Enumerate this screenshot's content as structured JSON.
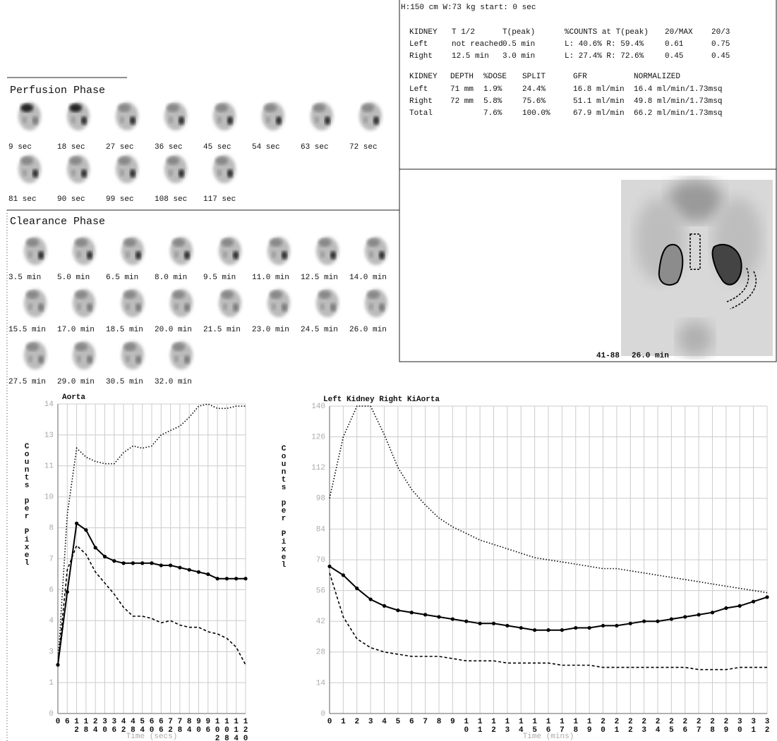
{
  "header": {
    "patient": "H:150 cm  W:73 kg   start:  0 sec"
  },
  "kidney_table": {
    "columns": [
      "KIDNEY",
      "T 1/2",
      "T(peak)",
      "%COUNTS at T(peak)",
      "20/MAX",
      "20/3"
    ],
    "rows": [
      [
        "Left",
        "not reached",
        "0.5 min",
        "L:  40.6%  R:  59.4%",
        "0.61",
        "0.75"
      ],
      [
        "Right",
        "12.5 min",
        "3.0 min",
        "L:  27.4%  R:  72.6%",
        "0.45",
        "0.45"
      ]
    ]
  },
  "gfr_table": {
    "columns": [
      "KIDNEY",
      "DEPTH",
      "%DOSE",
      "SPLIT",
      "GFR",
      "NORMALIZED"
    ],
    "rows": [
      [
        "Left",
        "71 mm",
        "1.9%",
        "24.4%",
        "16.8 ml/min",
        "16.4 ml/min/1.73msq"
      ],
      [
        "Right",
        "72 mm",
        "5.8%",
        "75.6%",
        "51.1 ml/min",
        "49.8 ml/min/1.73msq"
      ],
      [
        "Total",
        "7.6%",
        "100.0%",
        "67.9 ml/min",
        "66.2 ml/min/1.73msq"
      ]
    ]
  },
  "image": {
    "frames": "41-88",
    "time": "26.0 min"
  },
  "perfusion": {
    "title": "Perfusion Phase",
    "frames": [
      "9 sec",
      "18 sec",
      "27 sec",
      "36 sec",
      "45 sec",
      "54 sec",
      "63 sec",
      "72 sec",
      "81 sec",
      "90 sec",
      "99 sec",
      "108 sec",
      "117 sec"
    ]
  },
  "clearance": {
    "title": "Clearance Phase",
    "frames": [
      "3.5 min",
      "5.0 min",
      "6.5 min",
      "8.0 min",
      "9.5 min",
      "11.0 min",
      "12.5 min",
      "14.0 min",
      "15.5 min",
      "17.0 min",
      "18.5 min",
      "20.0 min",
      "21.5 min",
      "23.0 min",
      "24.5 min",
      "26.0 min",
      "27.5 min",
      "29.0 min",
      "30.5 min",
      "32.0 min"
    ]
  },
  "chart_data": [
    {
      "type": "line",
      "title": "Aorta",
      "y_label": "Counts per Pixel",
      "x_label": "Time (secs)",
      "x": [
        0,
        6,
        12,
        18,
        24,
        30,
        36,
        42,
        48,
        54,
        60,
        66,
        72,
        78,
        84,
        90,
        96,
        102,
        108,
        114,
        120
      ],
      "xlim": [
        0,
        120
      ],
      "xticks": [
        0,
        6,
        12,
        18,
        24,
        30,
        36,
        42,
        48,
        54,
        60,
        66,
        72,
        78,
        84,
        90,
        96,
        102,
        108,
        114,
        120
      ],
      "ylim": [
        0,
        14
      ],
      "yticks": [
        0,
        {
          "value": 1.4,
          "label": "1"
        },
        {
          "value": 2.8,
          "label": "3"
        },
        {
          "value": 4.2,
          "label": "4"
        },
        {
          "value": 5.6,
          "label": "6"
        },
        7,
        {
          "value": 8.4,
          "label": "8"
        },
        {
          "value": 9.8,
          "label": "10"
        },
        {
          "value": 11.2,
          "label": "11"
        },
        {
          "value": 12.6,
          "label": "13"
        },
        14
      ],
      "grid": true,
      "series": [
        {
          "color": "#000000",
          "style": "dotted",
          "values": [
            2.2,
            9.0,
            12.0,
            11.6,
            11.4,
            11.3,
            11.3,
            11.8,
            12.1,
            12.0,
            12.1,
            12.6,
            12.8,
            13.0,
            13.4,
            13.9,
            14.0,
            13.8,
            13.8,
            13.9,
            13.9
          ]
        },
        {
          "color": "#000000",
          "style": "solid-markers",
          "values": [
            2.2,
            5.5,
            8.6,
            8.3,
            7.5,
            7.1,
            6.9,
            6.8,
            6.8,
            6.8,
            6.8,
            6.7,
            6.7,
            6.6,
            6.5,
            6.4,
            6.3,
            6.1,
            6.1,
            6.1,
            6.1
          ]
        },
        {
          "color": "#000000",
          "style": "dashed",
          "values": [
            2.2,
            6.5,
            7.6,
            7.2,
            6.4,
            5.9,
            5.4,
            4.8,
            4.4,
            4.4,
            4.3,
            4.1,
            4.2,
            4.0,
            3.9,
            3.9,
            3.7,
            3.6,
            3.4,
            3.0,
            2.2
          ]
        }
      ]
    },
    {
      "type": "line",
      "title": "Left Kidney Right KiAorta",
      "y_label": "Counts per Pixel",
      "x_label": "Time (mins)",
      "x": [
        0,
        1,
        2,
        3,
        4,
        5,
        6,
        7,
        8,
        9,
        10,
        11,
        12,
        13,
        14,
        15,
        16,
        17,
        18,
        19,
        20,
        21,
        22,
        23,
        24,
        25,
        26,
        27,
        28,
        29,
        30,
        31,
        32
      ],
      "xlim": [
        0,
        32
      ],
      "xticks": [
        0,
        1,
        2,
        3,
        4,
        5,
        6,
        7,
        8,
        9,
        10,
        11,
        12,
        13,
        14,
        15,
        16,
        17,
        18,
        19,
        20,
        21,
        22,
        23,
        24,
        25,
        26,
        27,
        28,
        29,
        30,
        31,
        32
      ],
      "ylim": [
        0,
        140
      ],
      "yticks": [
        0,
        14,
        28,
        42,
        56,
        70,
        84,
        98,
        112,
        126,
        140
      ],
      "grid": true,
      "series": [
        {
          "color": "#000000",
          "style": "dotted",
          "values": [
            98,
            126,
            140,
            140,
            127,
            112,
            102,
            95,
            89,
            85,
            82,
            79,
            77,
            75,
            73,
            71,
            70,
            69,
            68,
            67,
            66,
            66,
            65,
            64,
            63,
            62,
            61,
            60,
            59,
            58,
            57,
            56,
            55
          ]
        },
        {
          "color": "#000000",
          "style": "solid-markers",
          "values": [
            67,
            63,
            57,
            52,
            49,
            47,
            46,
            45,
            44,
            43,
            42,
            41,
            41,
            40,
            39,
            38,
            38,
            38,
            39,
            39,
            40,
            40,
            41,
            42,
            42,
            43,
            44,
            45,
            46,
            48,
            49,
            51,
            53
          ]
        },
        {
          "color": "#000000",
          "style": "dashed",
          "values": [
            64,
            44,
            34,
            30,
            28,
            27,
            26,
            26,
            26,
            25,
            24,
            24,
            24,
            23,
            23,
            23,
            23,
            22,
            22,
            22,
            21,
            21,
            21,
            21,
            21,
            21,
            21,
            20,
            20,
            20,
            21,
            21,
            21
          ]
        }
      ]
    }
  ]
}
